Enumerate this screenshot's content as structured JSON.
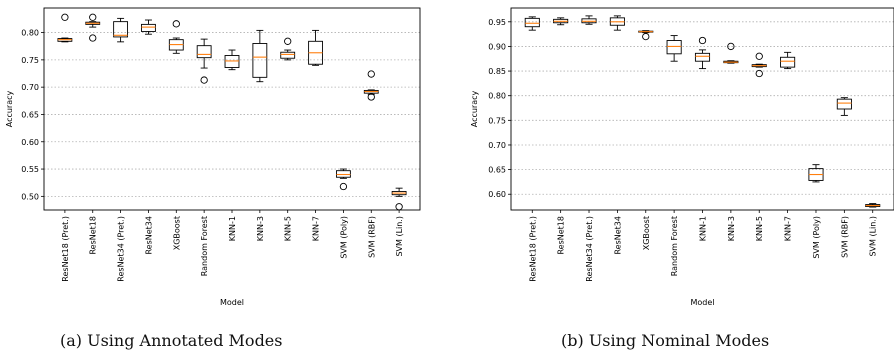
{
  "chart_data": [
    {
      "type": "box",
      "caption": "(a) Using Annotated Modes",
      "xlabel": "Model",
      "ylabel": "Accuracy",
      "ylim": [
        0.475,
        0.845
      ],
      "yticks": [
        0.5,
        0.55,
        0.6,
        0.65,
        0.7,
        0.75,
        0.8
      ],
      "grid": "horizontal dotted",
      "categories": [
        "ResNet18 (Pret.)",
        "ResNet18",
        "ResNet34 (Pret.)",
        "ResNet34",
        "XGBoost",
        "Random Forest",
        "KNN-1",
        "KNN-3",
        "KNN-5",
        "KNN-7",
        "SVM (Poly)",
        "SVM (RBF)",
        "SVM (Lin.)"
      ],
      "boxes": [
        {
          "whislo": 0.783,
          "q1": 0.784,
          "med": 0.787,
          "q3": 0.789,
          "whishi": 0.79,
          "fliers": [
            0.828
          ]
        },
        {
          "whislo": 0.81,
          "q1": 0.815,
          "med": 0.817,
          "q3": 0.819,
          "whishi": 0.82,
          "fliers": [
            0.828,
            0.79
          ]
        },
        {
          "whislo": 0.783,
          "q1": 0.792,
          "med": 0.795,
          "q3": 0.82,
          "whishi": 0.826
        },
        {
          "whislo": 0.797,
          "q1": 0.802,
          "med": 0.81,
          "q3": 0.815,
          "whishi": 0.823
        },
        {
          "whislo": 0.762,
          "q1": 0.768,
          "med": 0.778,
          "q3": 0.787,
          "whishi": 0.79,
          "fliers": [
            0.816
          ]
        },
        {
          "whislo": 0.735,
          "q1": 0.754,
          "med": 0.76,
          "q3": 0.776,
          "whishi": 0.788,
          "fliers": [
            0.713
          ]
        },
        {
          "whislo": 0.732,
          "q1": 0.736,
          "med": 0.748,
          "q3": 0.758,
          "whishi": 0.768
        },
        {
          "whislo": 0.71,
          "q1": 0.718,
          "med": 0.755,
          "q3": 0.78,
          "whishi": 0.804
        },
        {
          "whislo": 0.75,
          "q1": 0.753,
          "med": 0.76,
          "q3": 0.764,
          "whishi": 0.768,
          "fliers": [
            0.784
          ]
        },
        {
          "whislo": 0.74,
          "q1": 0.742,
          "med": 0.763,
          "q3": 0.784,
          "whishi": 0.804
        },
        {
          "whislo": 0.533,
          "q1": 0.535,
          "med": 0.54,
          "q3": 0.547,
          "whishi": 0.55,
          "fliers": [
            0.518
          ]
        },
        {
          "whislo": 0.687,
          "q1": 0.689,
          "med": 0.692,
          "q3": 0.694,
          "whishi": 0.695,
          "fliers": [
            0.724,
            0.682
          ]
        },
        {
          "whislo": 0.5,
          "q1": 0.503,
          "med": 0.506,
          "q3": 0.509,
          "whishi": 0.515,
          "fliers": [
            0.481
          ]
        }
      ]
    },
    {
      "type": "box",
      "caption": "(b) Using Nominal Modes",
      "xlabel": "Model",
      "ylabel": "Accuracy",
      "ylim": [
        0.568,
        0.978
      ],
      "yticks": [
        0.6,
        0.65,
        0.7,
        0.75,
        0.8,
        0.85,
        0.9,
        0.95
      ],
      "grid": "horizontal dotted",
      "categories": [
        "ResNet18 (Pret.)",
        "ResNet18",
        "ResNet34 (Pret.)",
        "ResNet34",
        "XGBoost",
        "Random Forest",
        "KNN-1",
        "KNN-3",
        "KNN-5",
        "KNN-7",
        "SVM (Poly)",
        "SVM (RBF)",
        "SVM (Lin.)"
      ],
      "boxes": [
        {
          "whislo": 0.933,
          "q1": 0.94,
          "med": 0.947,
          "q3": 0.957,
          "whishi": 0.96
        },
        {
          "whislo": 0.944,
          "q1": 0.948,
          "med": 0.951,
          "q3": 0.955,
          "whishi": 0.958
        },
        {
          "whislo": 0.945,
          "q1": 0.948,
          "med": 0.951,
          "q3": 0.956,
          "whishi": 0.962
        },
        {
          "whislo": 0.933,
          "q1": 0.943,
          "med": 0.95,
          "q3": 0.958,
          "whishi": 0.962
        },
        {
          "whislo": 0.928,
          "q1": 0.929,
          "med": 0.93,
          "q3": 0.931,
          "whishi": 0.932,
          "fliers": [
            0.92
          ]
        },
        {
          "whislo": 0.87,
          "q1": 0.885,
          "med": 0.9,
          "q3": 0.912,
          "whishi": 0.922
        },
        {
          "whislo": 0.855,
          "q1": 0.87,
          "med": 0.88,
          "q3": 0.886,
          "whishi": 0.893,
          "fliers": [
            0.912
          ]
        },
        {
          "whislo": 0.866,
          "q1": 0.867,
          "med": 0.868,
          "q3": 0.87,
          "whishi": 0.871,
          "fliers": [
            0.9
          ]
        },
        {
          "whislo": 0.858,
          "q1": 0.859,
          "med": 0.861,
          "q3": 0.863,
          "whishi": 0.864,
          "fliers": [
            0.88,
            0.845
          ]
        },
        {
          "whislo": 0.855,
          "q1": 0.858,
          "med": 0.87,
          "q3": 0.878,
          "whishi": 0.888
        },
        {
          "whislo": 0.625,
          "q1": 0.628,
          "med": 0.64,
          "q3": 0.652,
          "whishi": 0.66
        },
        {
          "whislo": 0.76,
          "q1": 0.773,
          "med": 0.785,
          "q3": 0.793,
          "whishi": 0.796
        },
        {
          "whislo": 0.574,
          "q1": 0.575,
          "med": 0.577,
          "q3": 0.579,
          "whishi": 0.581
        }
      ]
    }
  ]
}
